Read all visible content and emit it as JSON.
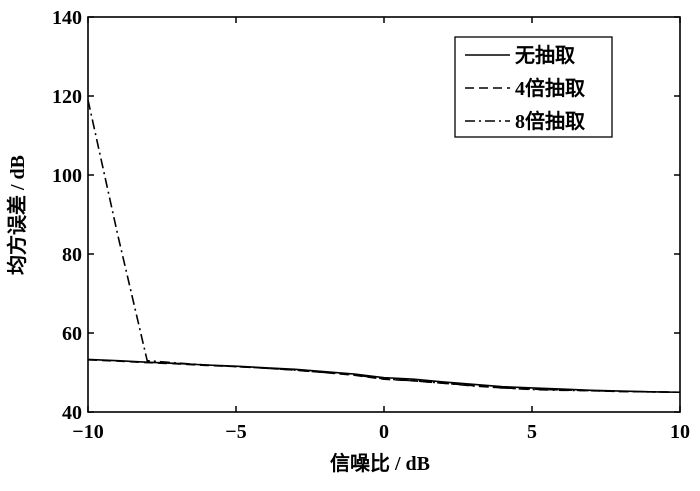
{
  "chart_data": {
    "type": "line",
    "xlabel": "信噪比 / dB",
    "ylabel": "均方误差 / dB",
    "x": [
      -10,
      -9,
      -8,
      -7,
      -6,
      -5,
      -4,
      -3,
      -2,
      -1,
      0,
      1,
      2,
      3,
      4,
      5,
      6,
      7,
      8,
      9,
      10
    ],
    "series": [
      {
        "name": "无抽取",
        "color": "#000000",
        "linestyle": "solid",
        "values": [
          53.3,
          53.0,
          52.6,
          52.3,
          51.9,
          51.6,
          51.2,
          50.8,
          50.2,
          49.6,
          48.7,
          48.3,
          47.6,
          47.0,
          46.4,
          46.1,
          45.8,
          45.5,
          45.3,
          45.1,
          45.0
        ]
      },
      {
        "name": "4倍抽取",
        "color": "#000000",
        "linestyle": "dashed",
        "values": [
          53.2,
          52.9,
          52.5,
          52.2,
          51.8,
          51.5,
          51.1,
          50.6,
          50.0,
          49.3,
          48.3,
          47.9,
          47.3,
          46.7,
          46.1,
          45.8,
          45.6,
          45.4,
          45.2,
          45.1,
          45.0
        ]
      },
      {
        "name": "8倍抽取",
        "color": "#000000",
        "linestyle": "dashdot",
        "values": [
          119,
          85,
          53.0,
          52.4,
          51.9,
          51.5,
          51.1,
          50.6,
          50.0,
          49.4,
          48.4,
          47.9,
          47.3,
          46.6,
          46.1,
          45.7,
          45.5,
          45.4,
          45.2,
          45.1,
          45.0
        ]
      }
    ],
    "xlim": [
      -10,
      10
    ],
    "xticks": [
      {
        "value": -10,
        "label": "−10"
      },
      {
        "value": -5,
        "label": "−5"
      },
      0,
      5,
      10
    ],
    "ylim": [
      40,
      140
    ],
    "yticks": [
      40,
      60,
      80,
      100,
      120,
      140
    ],
    "legend": "upper right"
  }
}
